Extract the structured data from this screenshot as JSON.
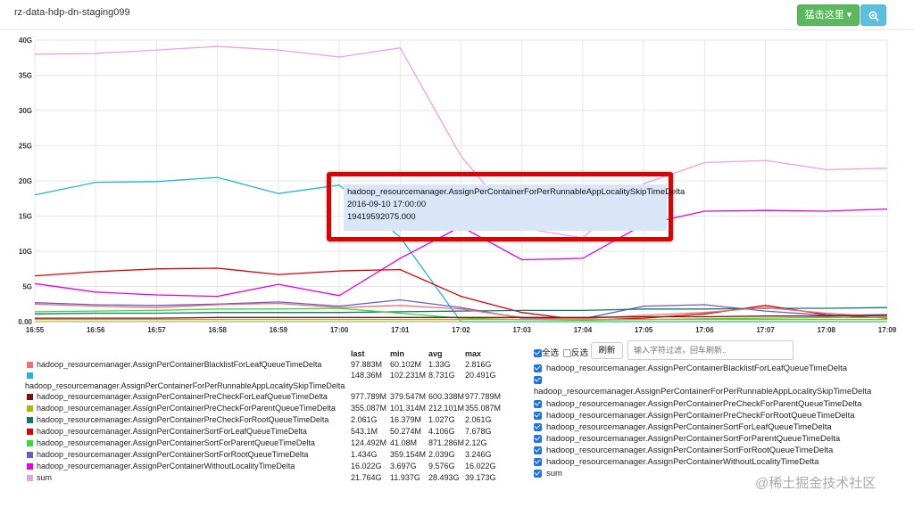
{
  "header": {
    "title": "rz-data-hdp-dn-staging099",
    "action_label": "猛击这里 ▾",
    "zoom_icon": "search-plus-icon"
  },
  "chart_data": {
    "type": "line",
    "x": [
      "16:55",
      "16:56",
      "16:57",
      "16:58",
      "16:59",
      "17:00",
      "17:01",
      "17:02",
      "17:03",
      "17:04",
      "17:05",
      "17:06",
      "17:07",
      "17:08",
      "17:09"
    ],
    "y_ticks": [
      "40G",
      "35G",
      "30G",
      "25G",
      "20G",
      "15G",
      "10G",
      "5G",
      "0.00"
    ],
    "ylim": [
      0,
      40
    ],
    "y_unit": "G",
    "grid": true,
    "series": [
      {
        "name": "sum",
        "color": "#e8a0e8",
        "values": [
          38.0,
          38.1,
          38.6,
          39.1,
          38.6,
          37.6,
          38.9,
          23.5,
          13.3,
          11.9,
          19.6,
          22.6,
          22.9,
          21.6,
          21.8
        ]
      },
      {
        "name": "hadoop_resourcemanager.AssignPerContainerForPerRunnableAppLocalitySkipTimeDelta",
        "color": "#22b5e0",
        "values": [
          18.0,
          19.8,
          19.9,
          20.5,
          18.2,
          19.4,
          12.0,
          0.0,
          0.0,
          0.0,
          0.0,
          0.0,
          0.0,
          0.0,
          0.0
        ]
      },
      {
        "name": "hadoop_resourcemanager.AssignPerContainerWithoutLocalityTimeDelta",
        "color": "#e600e6",
        "values": [
          5.4,
          4.2,
          3.8,
          3.6,
          5.3,
          3.7,
          9.0,
          13.5,
          8.8,
          9.0,
          13.8,
          15.7,
          15.8,
          15.7,
          16.0
        ]
      },
      {
        "name": "hadoop_resourcemanager.AssignPerContainerSortForLeafQueueTimeDelta",
        "color": "#e00000",
        "values": [
          6.5,
          7.1,
          7.5,
          7.6,
          6.7,
          7.2,
          7.4,
          3.6,
          1.3,
          0.2,
          0.5,
          1.1,
          2.3,
          1.0,
          0.5
        ]
      },
      {
        "name": "hadoop_resourcemanager.AssignPerContainerSortForRootQueueTimeDelta",
        "color": "#6a5acd",
        "values": [
          2.7,
          2.4,
          2.3,
          2.5,
          2.8,
          2.2,
          3.1,
          2.0,
          0.5,
          0.4,
          2.2,
          2.4,
          1.5,
          0.9,
          1.0
        ]
      },
      {
        "name": "hadoop_resourcemanager.AssignPerContainerPreCheckForRootQueueTimeDelta",
        "color": "#0e7a6e",
        "values": [
          1.1,
          1.2,
          1.2,
          1.3,
          1.3,
          1.3,
          1.4,
          1.5,
          1.6,
          1.6,
          1.8,
          1.8,
          1.9,
          1.9,
          2.0
        ]
      },
      {
        "name": "hadoop_resourcemanager.AssignPerContainerBlacklistForLeafQueueTimeDelta",
        "color": "#f07070",
        "values": [
          2.5,
          2.2,
          2.0,
          2.4,
          2.6,
          2.0,
          2.3,
          1.8,
          0.6,
          0.4,
          0.9,
          1.3,
          2.0,
          1.2,
          0.7
        ]
      },
      {
        "name": "hadoop_resourcemanager.AssignPerContainerSortForParentQueueTimeDelta",
        "color": "#33dd33",
        "values": [
          1.4,
          1.5,
          1.6,
          1.8,
          1.8,
          1.9,
          1.2,
          0.5,
          0.3,
          0.2,
          0.3,
          0.4,
          0.5,
          0.6,
          0.6
        ]
      },
      {
        "name": "hadoop_resourcemanager.AssignPerContainerPreCheckForParentQueueTimeDelta",
        "color": "#b5b500",
        "values": [
          0.3,
          0.3,
          0.3,
          0.3,
          0.3,
          0.3,
          0.3,
          0.3,
          0.3,
          0.3,
          0.3,
          0.3,
          0.3,
          0.3,
          0.3
        ]
      },
      {
        "name": "hadoop_resourcemanager.AssignPerContainerPreCheckForLeafQueueTimeDelta",
        "color": "#7a1010",
        "values": [
          0.5,
          0.5,
          0.5,
          0.6,
          0.6,
          0.6,
          0.6,
          0.6,
          0.6,
          0.6,
          0.7,
          0.7,
          0.8,
          0.8,
          0.9
        ]
      }
    ]
  },
  "tooltip": {
    "name": "hadoop_resourcemanager.AssignPerContainerForPerRunnableAppLocalitySkipTimeDelta",
    "time": "2016-09-10 17:00:00",
    "value": "19419592075.000"
  },
  "stats": {
    "headers": [
      "last",
      "min",
      "avg",
      "max"
    ],
    "rows": [
      {
        "name": "hadoop_resourcemanager.AssignPerContainerBlacklistForLeafQueueTimeDelta",
        "color": "#f07070",
        "last": "97.883M",
        "min": "60.102M",
        "avg": "1.33G",
        "max": "2.816G"
      },
      {
        "name": "hadoop_resourcemanager.AssignPerContainerForPerRunnableAppLocalitySkipTimeDelta",
        "color": "#22b5e0",
        "last": "148.36M",
        "min": "102.231M",
        "avg": "8.731G",
        "max": "20.491G"
      },
      {
        "name": "hadoop_resourcemanager.AssignPerContainerPreCheckForLeafQueueTimeDelta",
        "color": "#7a1010",
        "last": "977.789M",
        "min": "379.547M",
        "avg": "600.338M",
        "max": "977.789M"
      },
      {
        "name": "hadoop_resourcemanager.AssignPerContainerPreCheckForParentQueueTimeDelta",
        "color": "#b5b500",
        "last": "355.087M",
        "min": "101.314M",
        "avg": "212.101M",
        "max": "355.087M"
      },
      {
        "name": "hadoop_resourcemanager.AssignPerContainerPreCheckForRootQueueTimeDelta",
        "color": "#0e7a6e",
        "last": "2.061G",
        "min": "16.379M",
        "avg": "1.027G",
        "max": "2.061G"
      },
      {
        "name": "hadoop_resourcemanager.AssignPerContainerSortForLeafQueueTimeDelta",
        "color": "#e00000",
        "last": "543.1M",
        "min": "50.274M",
        "avg": "4.106G",
        "max": "7.678G"
      },
      {
        "name": "hadoop_resourcemanager.AssignPerContainerSortForParentQueueTimeDelta",
        "color": "#33dd33",
        "last": "124.492M",
        "min": "41.08M",
        "avg": "871.286M",
        "max": "2.12G"
      },
      {
        "name": "hadoop_resourcemanager.AssignPerContainerSortForRootQueueTimeDelta",
        "color": "#6a5acd",
        "last": "1.434G",
        "min": "359.154M",
        "avg": "2.039G",
        "max": "3.246G"
      },
      {
        "name": "hadoop_resourcemanager.AssignPerContainerWithoutLocalityTimeDelta",
        "color": "#e600e6",
        "last": "16.022G",
        "min": "3.697G",
        "avg": "9.576G",
        "max": "16.022G"
      },
      {
        "name": "sum",
        "color": "#e8a0e8",
        "last": "21.764G",
        "min": "11.937G",
        "avg": "28.493G",
        "max": "39.173G"
      }
    ]
  },
  "controls": {
    "select_all": "全选",
    "invert": "反选",
    "refresh": "刷新",
    "filter_placeholder": "输入字符过滤，回车刷新.."
  },
  "checklist": [
    "hadoop_resourcemanager.AssignPerContainerBlacklistForLeafQueueTimeDelta",
    "hadoop_resourcemanager.AssignPerContainerForPerRunnableAppLocalitySkipTimeDelta",
    "hadoop_resourcemanager.AssignPerContainerPreCheckForParentQueueTimeDelta",
    "hadoop_resourcemanager.AssignPerContainerPreCheckForRootQueueTimeDelta",
    "hadoop_resourcemanager.AssignPerContainerSortForLeafQueueTimeDelta",
    "hadoop_resourcemanager.AssignPerContainerSortForParentQueueTimeDelta",
    "hadoop_resourcemanager.AssignPerContainerSortForRootQueueTimeDelta",
    "hadoop_resourcemanager.AssignPerContainerWithoutLocalityTimeDelta",
    "sum"
  ],
  "watermark": "@稀土掘金技术社区"
}
